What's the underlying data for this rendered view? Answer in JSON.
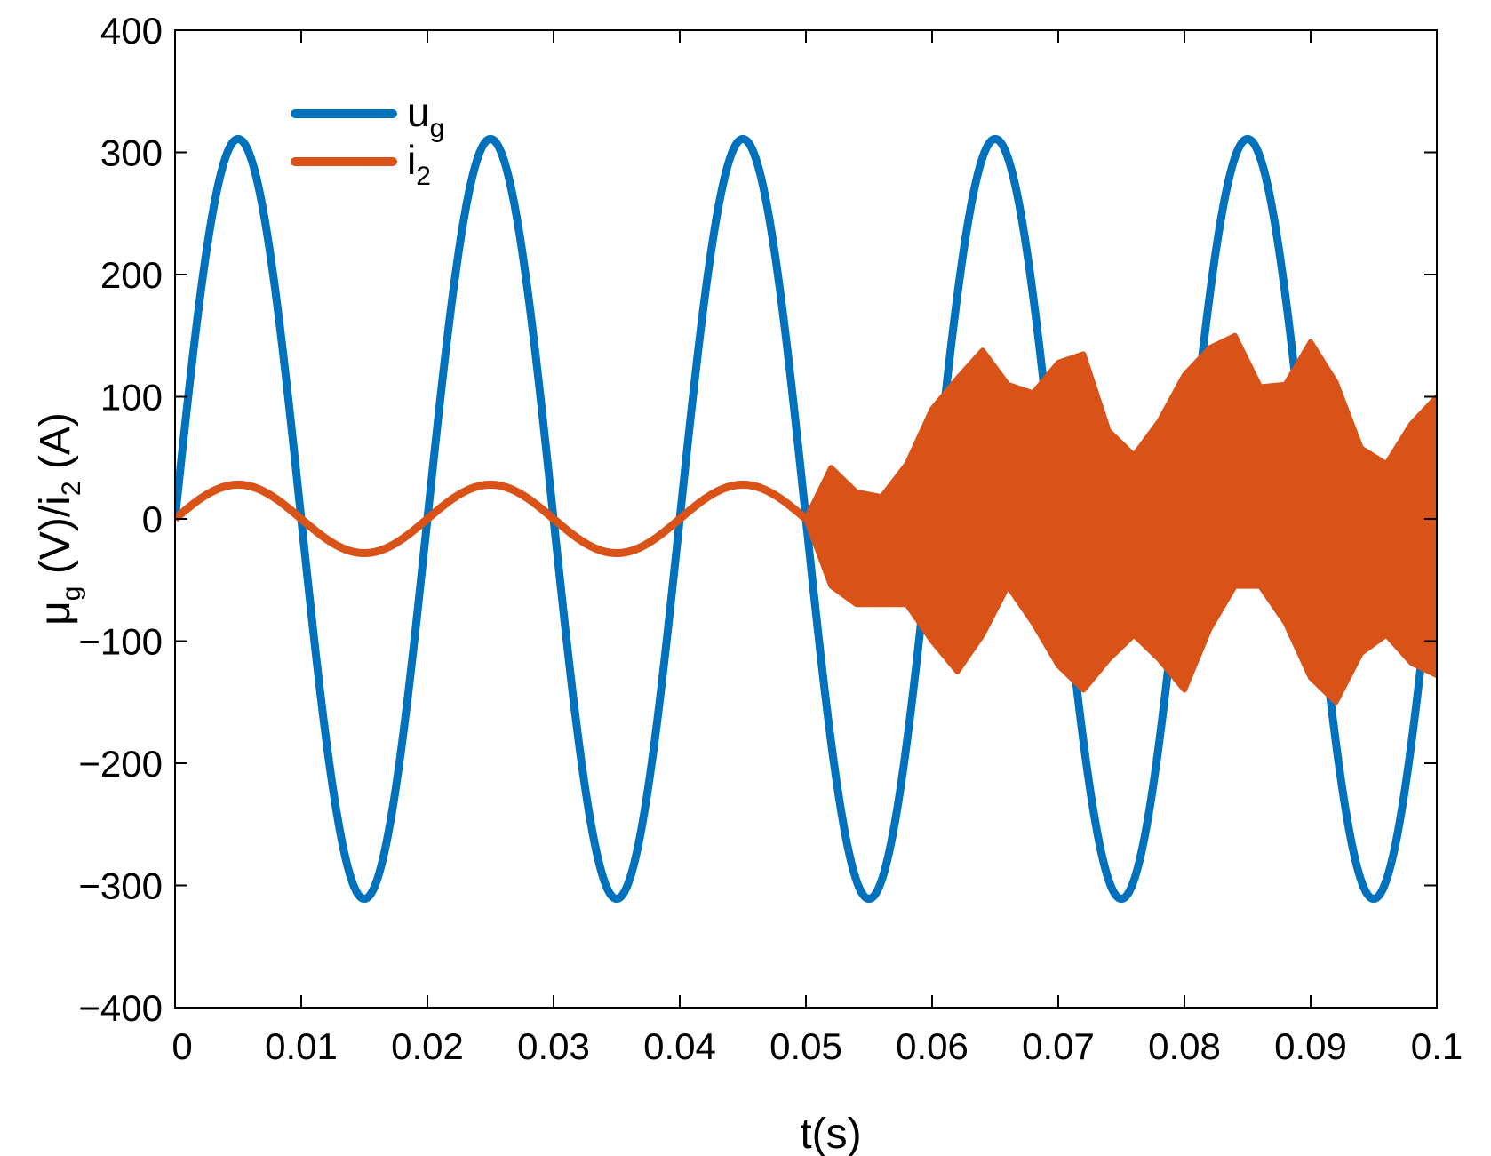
{
  "chart_data": {
    "type": "line",
    "xlabel": "t(s)",
    "ylabel": {
      "text": "μg (V)/i2 (A)",
      "base1": "μ",
      "sub1": "g",
      "mid": " (V)/i",
      "sub2": "2",
      "end": " (A)"
    },
    "xlim": [
      0,
      0.1
    ],
    "ylim": [
      -400,
      400
    ],
    "x_ticks": [
      0,
      0.01,
      0.02,
      0.03,
      0.04,
      0.05,
      0.06,
      0.07,
      0.08,
      0.09,
      0.1
    ],
    "x_tick_labels": [
      "0",
      "0.01",
      "0.02",
      "0.03",
      "0.04",
      "0.05",
      "0.06",
      "0.07",
      "0.08",
      "0.09",
      "0.1"
    ],
    "y_ticks": [
      400,
      300,
      200,
      100,
      0,
      -100,
      -200,
      -300,
      -400
    ],
    "y_tick_labels": [
      "400",
      "300",
      "200",
      "100",
      "0",
      "−100",
      "−200",
      "−300",
      "−400"
    ],
    "grid": false,
    "legend_position": "top-left",
    "series": [
      {
        "name": "ug",
        "name_base": "u",
        "name_sub": "g",
        "color": "#0072BD",
        "waveform": "sine",
        "amplitude": 311,
        "frequency_hz": 50,
        "x_start": 0,
        "x_end": 0.1
      },
      {
        "name": "i2",
        "name_base": "i",
        "name_sub": "2",
        "color": "#D95319",
        "stable_segment": {
          "waveform": "sine",
          "amplitude": 28,
          "frequency_hz": 50,
          "x_start": 0,
          "x_end": 0.05
        },
        "oscillating_band": {
          "x": [
            0.05,
            0.052,
            0.054,
            0.056,
            0.058,
            0.06,
            0.062,
            0.064,
            0.066,
            0.068,
            0.07,
            0.072,
            0.074,
            0.076,
            0.078,
            0.08,
            0.082,
            0.084,
            0.086,
            0.088,
            0.09,
            0.092,
            0.094,
            0.096,
            0.098,
            0.1
          ],
          "upper": [
            0,
            42,
            22,
            18,
            45,
            90,
            115,
            138,
            110,
            103,
            128,
            135,
            72,
            52,
            80,
            118,
            140,
            150,
            108,
            110,
            145,
            112,
            58,
            45,
            78,
            100
          ],
          "lower": [
            0,
            -55,
            -70,
            -70,
            -70,
            -100,
            -125,
            -95,
            -55,
            -85,
            -120,
            -140,
            -115,
            -95,
            -115,
            -140,
            -90,
            -55,
            -55,
            -85,
            -130,
            -150,
            -110,
            -95,
            -118,
            -128
          ]
        }
      }
    ]
  }
}
